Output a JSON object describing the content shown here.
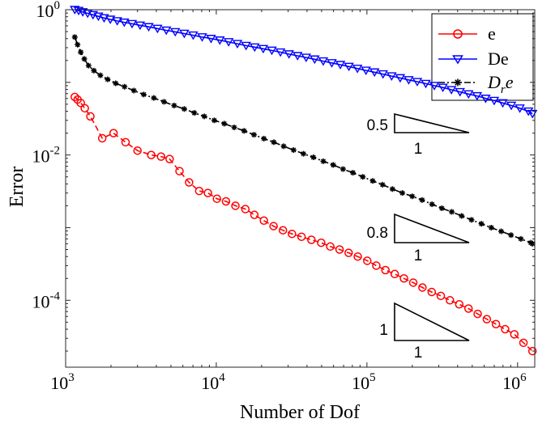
{
  "chart_data": {
    "type": "line",
    "xscale": "log",
    "yscale": "log",
    "xlim": [
      1000,
      1300000
    ],
    "ylim": [
      1.2e-05,
      1.0
    ],
    "xlabel": "Number of Dof",
    "ylabel": "Error",
    "x_ticks": [
      {
        "value": 1000,
        "base": "10",
        "exp": "3"
      },
      {
        "value": 10000,
        "base": "10",
        "exp": "4"
      },
      {
        "value": 100000,
        "base": "10",
        "exp": "5"
      },
      {
        "value": 1000000,
        "base": "10",
        "exp": "6"
      }
    ],
    "y_ticks": [
      {
        "value": 1,
        "base": "10",
        "exp": "0"
      },
      {
        "value": 0.01,
        "base": "10",
        "exp": "-2"
      },
      {
        "value": 0.0001,
        "base": "10",
        "exp": "-4"
      }
    ],
    "legend_position": "top-right",
    "series": [
      {
        "name": "e",
        "color": "#ff0000",
        "marker": "circle",
        "line": "dashed",
        "x": [
          1150,
          1200,
          1260,
          1340,
          1460,
          1750,
          2080,
          2500,
          3000,
          3700,
          4300,
          4900,
          5700,
          6600,
          7700,
          8800,
          10100,
          11600,
          13400,
          15600,
          17900,
          20700,
          24000,
          27700,
          31800,
          36800,
          42800,
          49700,
          57100,
          65800,
          75600,
          86900,
          100500,
          115400,
          132700,
          152900,
          176100,
          203000,
          233500,
          269200,
          309200,
          355700,
          409900,
          472100,
          543300,
          624800,
          718600,
          826800,
          951300,
          1093800,
          1255000
        ],
        "y": [
          0.063,
          0.058,
          0.052,
          0.044,
          0.034,
          0.017,
          0.02,
          0.015,
          0.0115,
          0.01,
          0.0095,
          0.0088,
          0.006,
          0.0042,
          0.0032,
          0.003,
          0.0025,
          0.0023,
          0.002,
          0.0018,
          0.0015,
          0.00125,
          0.00105,
          0.00092,
          0.00082,
          0.00075,
          0.00068,
          0.00062,
          0.00055,
          0.0005,
          0.00045,
          0.0004,
          0.00035,
          0.0003,
          0.00026,
          0.00023,
          0.0002,
          0.000175,
          0.00015,
          0.00013,
          0.000115,
          0.0001,
          8.8e-05,
          7.7e-05,
          6.5e-05,
          5.5e-05,
          4.7e-05,
          4e-05,
          3.4e-05,
          2.6e-05,
          2e-05
        ]
      },
      {
        "name": "De",
        "color": "#0000ff",
        "marker": "triangle-down",
        "line": "solid",
        "x": [
          1150,
          1220,
          1300,
          1400,
          1520,
          1650,
          1800,
          1980,
          2200,
          2450,
          2760,
          3120,
          3560,
          4070,
          4660,
          5340,
          6130,
          7030,
          8060,
          9230,
          10560,
          12080,
          13810,
          15760,
          17980,
          20500,
          23380,
          26660,
          30390,
          34640,
          39480,
          44990,
          51280,
          58440,
          66590,
          75900,
          86460,
          98540,
          112300,
          127900,
          145800,
          166200,
          189300,
          215800,
          245900,
          280200,
          319300,
          363800,
          414600,
          472500,
          538500,
          613600,
          699400,
          797000,
          908300,
          1035000,
          1180000,
          1255000
        ],
        "y": [
          1.0,
          0.97,
          0.93,
          0.89,
          0.85,
          0.81,
          0.77,
          0.735,
          0.7,
          0.67,
          0.64,
          0.61,
          0.58,
          0.55,
          0.52,
          0.495,
          0.47,
          0.445,
          0.42,
          0.4,
          0.38,
          0.36,
          0.34,
          0.32,
          0.305,
          0.29,
          0.275,
          0.26,
          0.245,
          0.232,
          0.22,
          0.208,
          0.196,
          0.185,
          0.175,
          0.165,
          0.155,
          0.146,
          0.138,
          0.13,
          0.122,
          0.115,
          0.108,
          0.102,
          0.096,
          0.09,
          0.085,
          0.079,
          0.074,
          0.069,
          0.065,
          0.06,
          0.056,
          0.052,
          0.048,
          0.044,
          0.04,
          0.037
        ]
      },
      {
        "name": "D_r e",
        "color": "#000000",
        "marker": "asterisk",
        "line": "dashdot",
        "x": [
          1150,
          1200,
          1260,
          1330,
          1420,
          1540,
          1700,
          1900,
          2150,
          2460,
          2840,
          3300,
          3850,
          4500,
          5250,
          6130,
          7150,
          8330,
          9700,
          11300,
          13150,
          15300,
          17800,
          20700,
          24100,
          28000,
          32600,
          37900,
          44100,
          51300,
          59700,
          69400,
          80700,
          93900,
          109200,
          127000,
          147700,
          171800,
          199800,
          232400,
          270300,
          314400,
          365600,
          425200,
          494500,
          575100,
          668900,
          777900,
          904700,
          1052000,
          1224000,
          1255000
        ],
        "y": [
          0.42,
          0.33,
          0.26,
          0.21,
          0.17,
          0.145,
          0.125,
          0.11,
          0.097,
          0.087,
          0.077,
          0.068,
          0.061,
          0.054,
          0.048,
          0.043,
          0.038,
          0.034,
          0.03,
          0.027,
          0.024,
          0.0215,
          0.019,
          0.0168,
          0.015,
          0.0132,
          0.0117,
          0.0104,
          0.0093,
          0.0082,
          0.0073,
          0.0064,
          0.0057,
          0.005,
          0.0044,
          0.0039,
          0.0034,
          0.003,
          0.0027,
          0.0024,
          0.0021,
          0.00185,
          0.00165,
          0.00145,
          0.00128,
          0.00113,
          0.001,
          0.00089,
          0.00079,
          0.0007,
          0.00062,
          0.0006
        ]
      }
    ],
    "slope_triangles": [
      {
        "label": "0.5",
        "base_label": "1",
        "slope": 0.5
      },
      {
        "label": "0.8",
        "base_label": "1",
        "slope": 0.8
      },
      {
        "label": "1",
        "base_label": "1",
        "slope": 1.0
      }
    ]
  }
}
